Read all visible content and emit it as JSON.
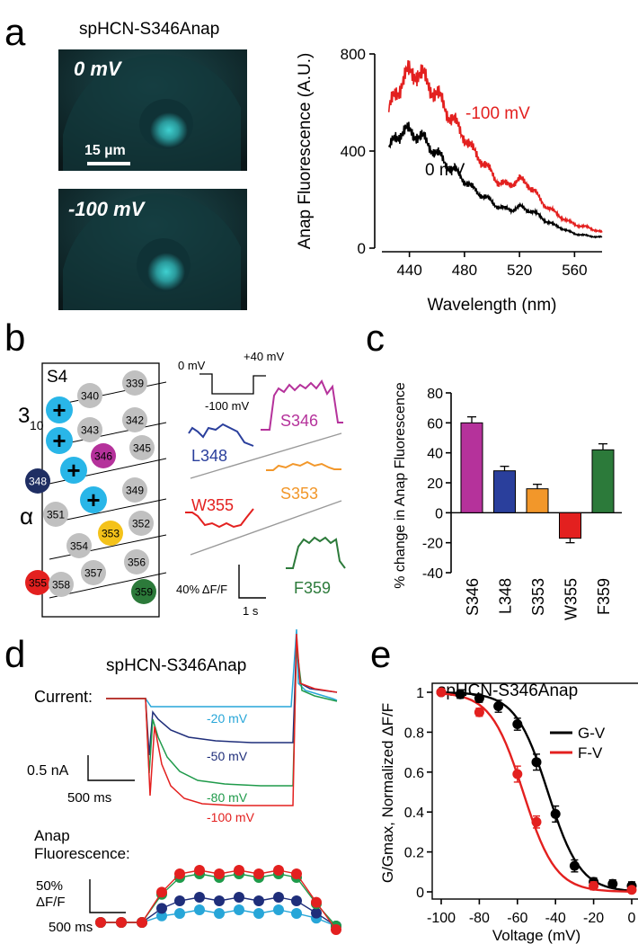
{
  "panel_labels": {
    "a": "a",
    "b": "b",
    "c": "c",
    "d": "d",
    "e": "e"
  },
  "panel_a": {
    "construct": "spHCN-S346Anap",
    "image_top_label": "0 mV",
    "image_bottom_label": "-100 mV",
    "scale_bar_label": "15 µm",
    "colors": {
      "image_bg": "#0b1a1c",
      "image_signal": "#36c6c6"
    }
  },
  "panel_b": {
    "helix_label": "S4",
    "label_310": "3",
    "label_310_sub": "10",
    "label_alpha": "α",
    "residues": [
      "339",
      "340",
      "342",
      "343",
      "345",
      "346",
      "348",
      "349",
      "351",
      "352",
      "353",
      "354",
      "355",
      "356",
      "357",
      "358",
      "359"
    ],
    "protocol_labels": {
      "hold": "0 mV",
      "step": "-100 mV",
      "post": "+40 mV"
    },
    "trace_labels": {
      "S346": "S346",
      "L348": "L348",
      "S353": "S353",
      "W355": "W355",
      "F359": "F359"
    },
    "scale_y": "40% ΔF/F",
    "scale_x": "1 s",
    "colors": {
      "S346": "#b5329b",
      "L348": "#2a3f9c",
      "S353": "#f2972a",
      "W355": "#e3201f",
      "F359": "#2c7a3a",
      "charged": "#29b6e8",
      "neutral": "#c0c0c0",
      "dark": "#1f2e63"
    }
  },
  "panel_d": {
    "construct": "spHCN-S346Anap",
    "current_label": "Current:",
    "fluor_label_1": "Anap",
    "fluor_label_2": "Fluorescence:",
    "voltage_labels": [
      "-20 mV",
      "-50 mV",
      "-80 mV",
      "-100 mV"
    ],
    "current_scale": "0.5 nA",
    "time_scale_1": "500 ms",
    "fluor_scale_1": "50%",
    "fluor_scale_2": "ΔF/F",
    "time_scale_2": "500 ms",
    "colors": {
      "-20 mV": "#27a6d8",
      "-50 mV": "#1f2e7a",
      "-80 mV": "#1f9a4a",
      "-100 mV": "#e3201f"
    }
  },
  "chart_data": [
    {
      "panel": "a",
      "type": "line",
      "xlabel": "Wavelength (nm)",
      "ylabel": "Anap Fluorescence (A.U.)",
      "xlim": [
        420,
        580
      ],
      "ylim": [
        0,
        800
      ],
      "xticks": [
        440,
        480,
        520,
        560
      ],
      "yticks": [
        0,
        400,
        800
      ],
      "series": [
        {
          "name": "-100 mV",
          "color": "#e3201f",
          "x": [
            425,
            430,
            435,
            440,
            445,
            450,
            455,
            460,
            465,
            470,
            475,
            480,
            485,
            490,
            495,
            500,
            505,
            510,
            515,
            520,
            525,
            530,
            535,
            540,
            545,
            550,
            555,
            560,
            565,
            570,
            575,
            580
          ],
          "y": [
            560,
            640,
            690,
            720,
            730,
            700,
            670,
            630,
            590,
            540,
            500,
            460,
            410,
            380,
            340,
            310,
            270,
            260,
            270,
            280,
            270,
            240,
            200,
            170,
            150,
            130,
            110,
            100,
            90,
            85,
            75,
            65
          ]
        },
        {
          "name": "0 mV",
          "color": "#000000",
          "x": [
            425,
            430,
            435,
            440,
            445,
            450,
            455,
            460,
            465,
            470,
            475,
            480,
            485,
            490,
            495,
            500,
            505,
            510,
            515,
            520,
            525,
            530,
            535,
            540,
            545,
            550,
            555,
            560,
            565,
            570,
            575,
            580
          ],
          "y": [
            400,
            460,
            480,
            480,
            470,
            450,
            420,
            390,
            360,
            330,
            310,
            280,
            250,
            230,
            210,
            190,
            170,
            160,
            160,
            170,
            160,
            150,
            130,
            110,
            95,
            85,
            70,
            60,
            55,
            50,
            48,
            45
          ]
        }
      ]
    },
    {
      "panel": "c",
      "type": "bar",
      "ylabel": "% change in Anap Fluorescence",
      "ylim": [
        -40,
        80
      ],
      "yticks": [
        -40,
        -20,
        0,
        20,
        40,
        60,
        80
      ],
      "categories": [
        "S346",
        "L348",
        "S353",
        "W355",
        "F359"
      ],
      "values": [
        60,
        28,
        16,
        -17,
        42
      ],
      "errors": [
        4,
        3,
        3,
        3,
        4
      ],
      "colors": [
        "#b5329b",
        "#2a3f9c",
        "#f2972a",
        "#e3201f",
        "#2c7a3a"
      ]
    },
    {
      "panel": "e",
      "type": "scatter",
      "title": "spHCN-S346Anap",
      "xlabel": "Voltage (mV)",
      "ylabel": "G/Gmax, Normalized ΔF/F",
      "xlim": [
        -100,
        0
      ],
      "ylim": [
        0,
        1
      ],
      "xticks": [
        -100,
        -80,
        -60,
        -40,
        -20,
        0
      ],
      "yticks": [
        0,
        0.2,
        0.4,
        0.6,
        0.8,
        1
      ],
      "legend_position": "top-right",
      "series": [
        {
          "name": "G-V",
          "color": "#000000",
          "x": [
            -100,
            -90,
            -80,
            -70,
            -60,
            -50,
            -40,
            -30,
            -20,
            -10,
            0
          ],
          "y": [
            1.0,
            0.99,
            0.97,
            0.93,
            0.84,
            0.65,
            0.39,
            0.13,
            0.05,
            0.04,
            0.03
          ],
          "err": [
            0.01,
            0.02,
            0.02,
            0.03,
            0.03,
            0.04,
            0.04,
            0.03,
            0.02,
            0.02,
            0.02
          ]
        },
        {
          "name": "F-V",
          "color": "#e3201f",
          "x": [
            -100,
            -80,
            -60,
            -50,
            -20,
            0
          ],
          "y": [
            1.0,
            0.9,
            0.59,
            0.35,
            0.03,
            0.01
          ],
          "err": [
            0.01,
            0.02,
            0.04,
            0.03,
            0.02,
            0.01
          ]
        }
      ]
    }
  ]
}
